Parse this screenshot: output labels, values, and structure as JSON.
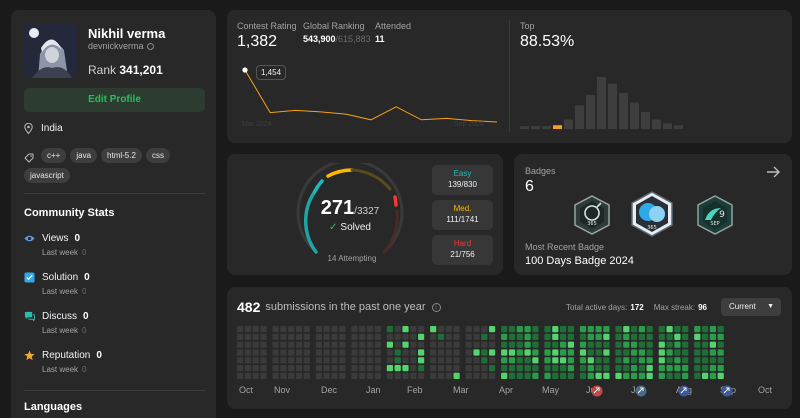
{
  "profile": {
    "name": "Nikhil verma",
    "handle": "devnickverma",
    "rank_label": "Rank",
    "rank_value": "341,201",
    "edit_label": "Edit Profile",
    "location": "India",
    "skills": [
      "c++",
      "java",
      "html-5.2",
      "css",
      "javascript"
    ]
  },
  "community": {
    "title": "Community Stats",
    "items": [
      {
        "label": "Views",
        "value": "0",
        "sub": "Last week",
        "sub_value": "0",
        "color": "#5c9ded"
      },
      {
        "label": "Solution",
        "value": "0",
        "sub": "Last week",
        "sub_value": "0",
        "color": "#2fa8e8"
      },
      {
        "label": "Discuss",
        "value": "0",
        "sub": "Last week",
        "sub_value": "0",
        "color": "#2cbbab"
      },
      {
        "label": "Reputation",
        "value": "0",
        "sub": "Last week",
        "sub_value": "0",
        "color": "#f2a62e"
      }
    ]
  },
  "languages_title": "Languages",
  "contest": {
    "rating_label": "Contest Rating",
    "rating_value": "1,382",
    "global_label": "Global Ranking",
    "global_value": "543,900",
    "global_total": "/615,883",
    "attended_label": "Attended",
    "attended_value": "11",
    "tooltip": "1,454",
    "date_start": "Mar 2024",
    "date_end": "Sep 2024",
    "top_label": "Top",
    "top_value": "88.53%",
    "accent": "#f89f1b"
  },
  "chart_data": {
    "type": "line",
    "title": "",
    "xlabel": "",
    "ylabel": "",
    "x": [
      1,
      2,
      3,
      4,
      5,
      6,
      7,
      8,
      9,
      10,
      11
    ],
    "values": [
      1454,
      1395,
      1398,
      1396,
      1393,
      1385,
      1403,
      1385,
      1387,
      1384,
      1382
    ],
    "highlight_value": 1454
  },
  "histogram": {
    "bars": [
      3,
      3,
      3,
      4,
      10,
      25,
      36,
      55,
      48,
      38,
      28,
      18,
      10,
      6,
      4
    ],
    "highlight_index": 3
  },
  "solved": {
    "count": "271",
    "total": "/3327",
    "solved_label": "Solved",
    "attempting": "14 Attempting",
    "easy_label": "Easy",
    "easy_value": "139/830",
    "medium_label": "Med.",
    "medium_value": "111/1741",
    "hard_label": "Hard",
    "hard_value": "21/756",
    "easy_color": "#1cbaba",
    "medium_color": "#ffb700",
    "hard_color": "#f63737"
  },
  "badges": {
    "title": "Badges",
    "count": "6",
    "recent_label": "Most Recent Badge",
    "recent_name": "100 Days Badge 2024",
    "badge_labels": [
      "365",
      "365",
      "SEP"
    ]
  },
  "heatmap": {
    "count": "482",
    "count_suffix": "submissions in the past one year",
    "active_label": "Total active days:",
    "active_value": "172",
    "streak_label": "Max streak:",
    "streak_value": "96",
    "select_value": "Current",
    "months": [
      "Oct",
      "Nov",
      "Dec",
      "Jan",
      "Feb",
      "Mar",
      "Apr",
      "May",
      "Jun",
      "Jul",
      "Aug",
      "Sep",
      "Oct"
    ]
  }
}
